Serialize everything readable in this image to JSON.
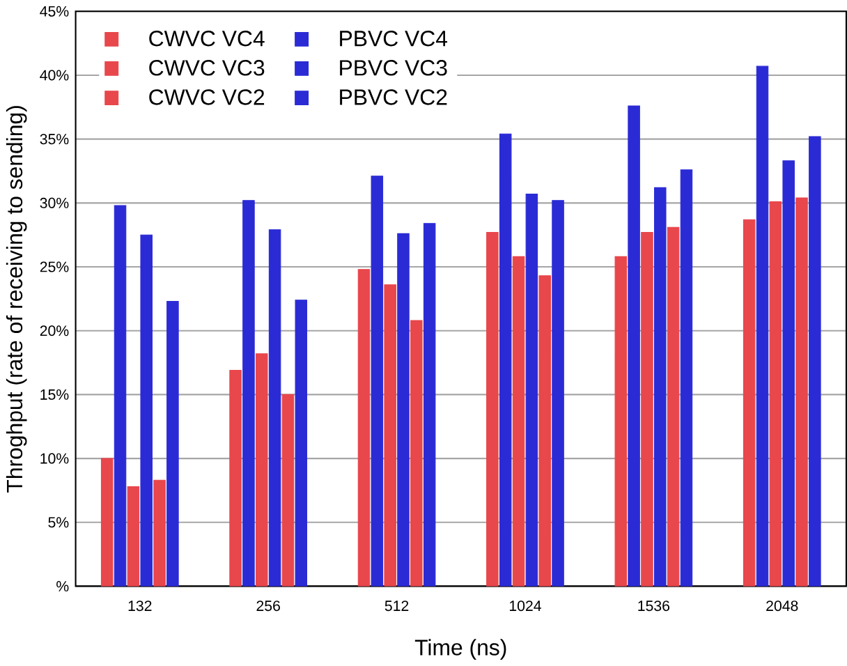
{
  "chart_data": {
    "type": "bar",
    "xlabel": "Time (ns)",
    "ylabel": "Throghput (rate of receiving to sending)",
    "categories": [
      "132",
      "256",
      "512",
      "1024",
      "1536",
      "2048"
    ],
    "series": [
      {
        "name": "CWVC VC4",
        "color": "#e8474c",
        "values": [
          10.0,
          16.9,
          24.8,
          27.7,
          25.8,
          28.7
        ]
      },
      {
        "name": "PBVC VC4",
        "color": "#2b2bd6",
        "values": [
          29.8,
          30.2,
          32.1,
          35.4,
          37.6,
          40.7
        ]
      },
      {
        "name": "CWVC VC3",
        "color": "#e8474c",
        "values": [
          7.8,
          18.2,
          23.6,
          25.8,
          27.7,
          30.1
        ]
      },
      {
        "name": "PBVC VC3",
        "color": "#2b2bd6",
        "values": [
          27.5,
          27.9,
          27.6,
          30.7,
          31.2,
          33.3
        ]
      },
      {
        "name": "CWVC VC2",
        "color": "#e8474c",
        "values": [
          8.3,
          15.0,
          20.8,
          24.3,
          28.1,
          30.4
        ]
      },
      {
        "name": "PBVC VC2",
        "color": "#2b2bd6",
        "values": [
          22.3,
          22.4,
          28.4,
          30.2,
          32.6,
          35.2
        ]
      }
    ],
    "ylim": [
      0,
      45
    ],
    "yticks": [
      {
        "value": 0,
        "label": "%"
      },
      {
        "value": 5,
        "label": "5%"
      },
      {
        "value": 10,
        "label": "10%"
      },
      {
        "value": 15,
        "label": "15%"
      },
      {
        "value": 20,
        "label": "20%"
      },
      {
        "value": 25,
        "label": "25%"
      },
      {
        "value": 30,
        "label": "30%"
      },
      {
        "value": 35,
        "label": "35%"
      },
      {
        "value": 40,
        "label": "40%"
      },
      {
        "value": 45,
        "label": "45%"
      }
    ],
    "grid": "y",
    "legend": "top left"
  }
}
